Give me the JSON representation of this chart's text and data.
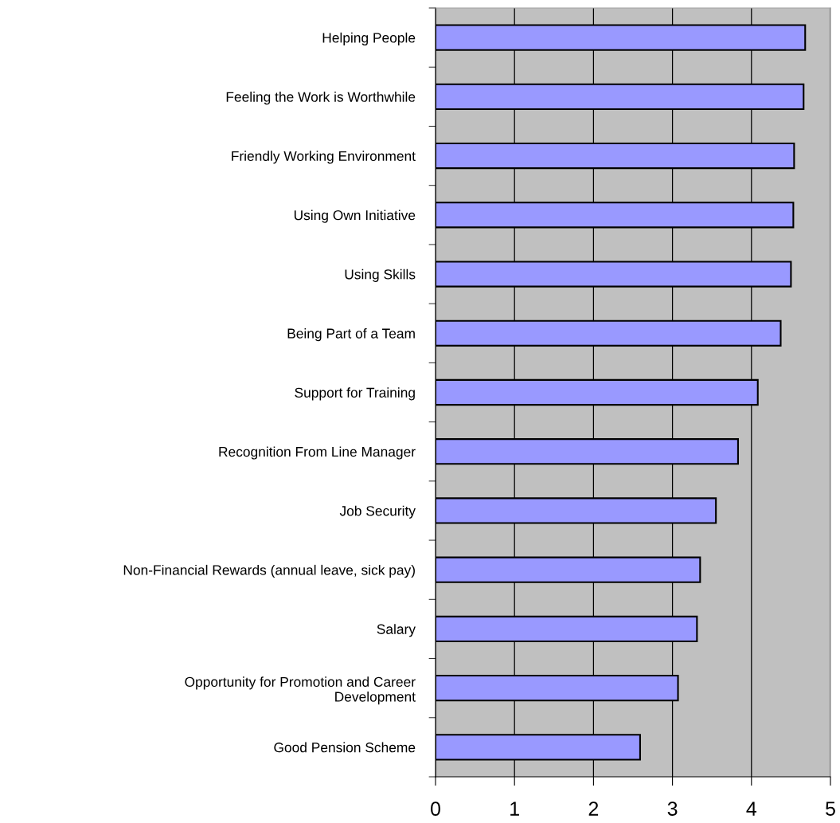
{
  "chart_data": {
    "type": "bar",
    "orientation": "horizontal",
    "categories": [
      "Helping People",
      "Feeling the Work is Worthwhile",
      "Friendly Working Environment",
      "Using Own Initiative",
      "Using Skills",
      "Being Part of a Team",
      "Support for Training",
      "Recognition From Line Manager",
      "Job Security",
      "Non-Financial Rewards (annual leave, sick pay)",
      "Salary",
      "Opportunity for Promotion and Career\nDevelopment",
      "Good Pension Scheme"
    ],
    "values": [
      4.68,
      4.66,
      4.54,
      4.53,
      4.5,
      4.37,
      4.08,
      3.83,
      3.55,
      3.35,
      3.31,
      3.07,
      2.59
    ],
    "color": "#9999ff",
    "xlim": [
      0,
      5
    ],
    "xticks": [
      0,
      1,
      2,
      3,
      4,
      5
    ],
    "grid": "x"
  }
}
